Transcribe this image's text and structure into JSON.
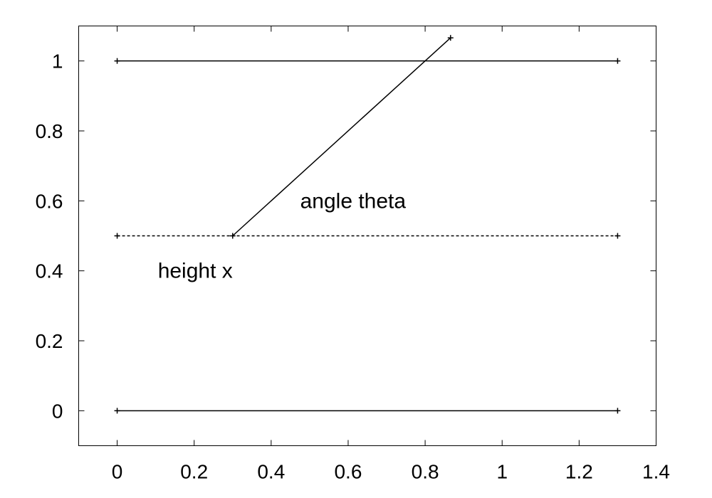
{
  "chart_data": {
    "type": "line",
    "title": "",
    "xlabel": "",
    "ylabel": "",
    "xlim": [
      -0.1,
      1.4
    ],
    "ylim": [
      -0.1,
      1.1
    ],
    "grid": false,
    "x_ticks": [
      {
        "value": 0,
        "label": "0"
      },
      {
        "value": 0.2,
        "label": "0.2"
      },
      {
        "value": 0.4,
        "label": "0.4"
      },
      {
        "value": 0.6,
        "label": "0.6"
      },
      {
        "value": 0.8,
        "label": "0.8"
      },
      {
        "value": 1,
        "label": "1"
      },
      {
        "value": 1.2,
        "label": "1.2"
      },
      {
        "value": 1.4,
        "label": "1.4"
      }
    ],
    "y_ticks": [
      {
        "value": 0,
        "label": "0"
      },
      {
        "value": 0.2,
        "label": "0.2"
      },
      {
        "value": 0.4,
        "label": "0.4"
      },
      {
        "value": 0.6,
        "label": "0.6"
      },
      {
        "value": 0.8,
        "label": "0.8"
      },
      {
        "value": 1,
        "label": "1"
      }
    ],
    "series": [
      {
        "x": [
          0,
          1.3
        ],
        "y": [
          0,
          0
        ],
        "style": "solid",
        "color": "#000000"
      },
      {
        "x": [
          0,
          1.3
        ],
        "y": [
          1,
          1
        ],
        "style": "solid",
        "color": "#000000"
      },
      {
        "x": [
          0,
          1.3
        ],
        "y": [
          0.5,
          0.5
        ],
        "style": "dashed",
        "color": "#000000"
      },
      {
        "x": [
          0.3,
          0.866
        ],
        "y": [
          0.5,
          1.066
        ],
        "style": "solid",
        "color": "#000000"
      }
    ],
    "annotations": [
      {
        "text": "angle theta",
        "x": 0.75,
        "y": 0.6
      },
      {
        "text": "height x",
        "x": 0.3,
        "y": 0.4
      }
    ]
  }
}
